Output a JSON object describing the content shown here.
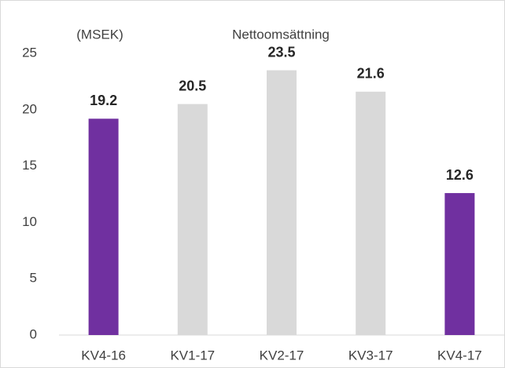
{
  "chart_data": {
    "type": "bar",
    "title": "Nettoomsättning",
    "annotation": "(MSEK)",
    "categories": [
      "KV4-16",
      "KV1-17",
      "KV2-17",
      "KV3-17",
      "KV4-17"
    ],
    "values": [
      19.2,
      20.5,
      23.5,
      21.6,
      12.6
    ],
    "colors": [
      "#7030a0",
      "#d9d9d9",
      "#d9d9d9",
      "#d9d9d9",
      "#7030a0"
    ],
    "ylim": [
      0,
      25
    ],
    "yticks": [
      0,
      5,
      10,
      15,
      20,
      25
    ],
    "grid": false
  }
}
